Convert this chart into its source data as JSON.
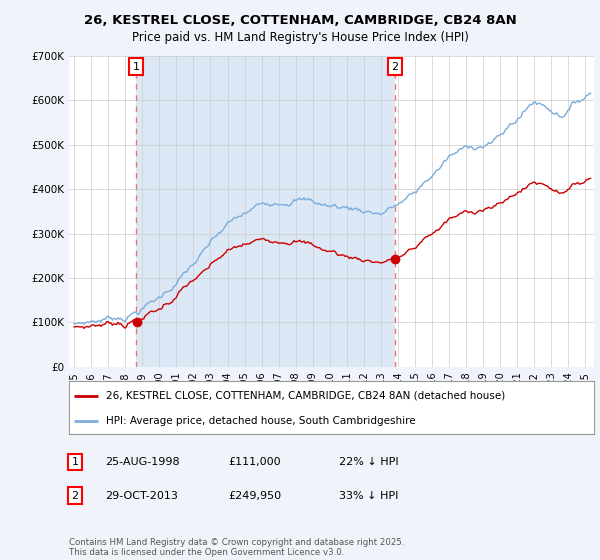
{
  "title_line1": "26, KESTREL CLOSE, COTTENHAM, CAMBRIDGE, CB24 8AN",
  "title_line2": "Price paid vs. HM Land Registry's House Price Index (HPI)",
  "legend_label_red": "26, KESTREL CLOSE, COTTENHAM, CAMBRIDGE, CB24 8AN (detached house)",
  "legend_label_blue": "HPI: Average price, detached house, South Cambridgeshire",
  "annotation1_label": "1",
  "annotation1_date": "25-AUG-1998",
  "annotation1_price": "£111,000",
  "annotation1_hpi": "22% ↓ HPI",
  "annotation1_year": 1998.65,
  "annotation1_value_red": 111000,
  "annotation2_label": "2",
  "annotation2_date": "29-OCT-2013",
  "annotation2_price": "£249,950",
  "annotation2_hpi": "33% ↓ HPI",
  "annotation2_year": 2013.83,
  "annotation2_value_red": 249950,
  "footnote": "Contains HM Land Registry data © Crown copyright and database right 2025.\nThis data is licensed under the Open Government Licence v3.0.",
  "ylim": [
    0,
    700000
  ],
  "xlim_start": 1994.7,
  "xlim_end": 2025.5,
  "background_color": "#f0f4fa",
  "plot_bg_color": "#ffffff",
  "highlight_bg_color": "#dce8f5",
  "grid_color": "#cccccc",
  "red_color": "#cc0000",
  "blue_color": "#7aacdc",
  "dashed_color": "#ee6666",
  "ytick_labels": [
    "£0",
    "£100K",
    "£200K",
    "£300K",
    "£400K",
    "£500K",
    "£600K",
    "£700K"
  ],
  "ytick_values": [
    0,
    100000,
    200000,
    300000,
    400000,
    500000,
    600000,
    700000
  ]
}
